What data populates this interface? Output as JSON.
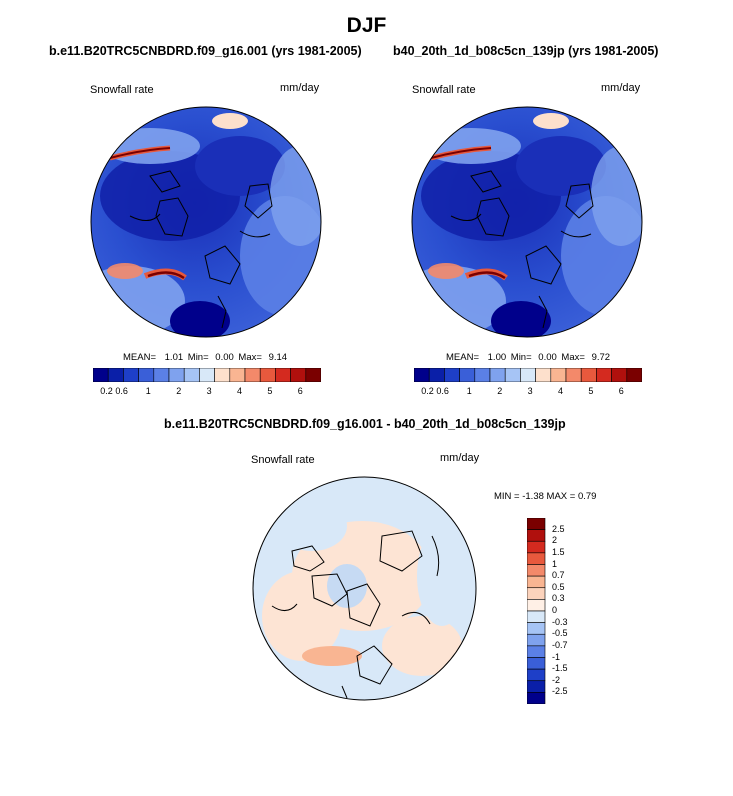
{
  "title": "DJF",
  "chart_data": [
    {
      "type": "heatmap",
      "projection": "polar stereographic (north pole)",
      "title": "b.e11.B20TRC5CNBDRD.f09_g16.001 (yrs 1981-2005)",
      "left_label": "Snowfall rate",
      "right_label": "mm/day",
      "stats": {
        "mean_label": "MEAN=",
        "mean": "1.01",
        "min_label": "Min=",
        "min": "0.00",
        "max_label": "Max=",
        "max": "9.14"
      },
      "colorbar": {
        "orientation": "horizontal",
        "levels": [
          0.2,
          0.4,
          0.6,
          0.8,
          1,
          1.5,
          2,
          2.5,
          3,
          3.5,
          4,
          4.5,
          5,
          5.5,
          6
        ],
        "tick_labels": [
          "0.2",
          "0.6",
          "1",
          "2",
          "3",
          "4",
          "5",
          "6"
        ]
      }
    },
    {
      "type": "heatmap",
      "projection": "polar stereographic (north pole)",
      "title": "b40_20th_1d_b08c5cn_139jp (yrs 1981-2005)",
      "left_label": "Snowfall rate",
      "right_label": "mm/day",
      "stats": {
        "mean_label": "MEAN=",
        "mean": "1.00",
        "min_label": "Min=",
        "min": "0.00",
        "max_label": "Max=",
        "max": "9.72"
      },
      "colorbar": {
        "orientation": "horizontal",
        "levels": [
          0.2,
          0.4,
          0.6,
          0.8,
          1,
          1.5,
          2,
          2.5,
          3,
          3.5,
          4,
          4.5,
          5,
          5.5,
          6
        ],
        "tick_labels": [
          "0.2",
          "0.6",
          "1",
          "2",
          "3",
          "4",
          "5",
          "6"
        ]
      }
    },
    {
      "type": "heatmap",
      "projection": "polar stereographic (north pole)",
      "title": "b.e11.B20TRC5CNBDRD.f09_g16.001 - b40_20th_1d_b08c5cn_139jp",
      "left_label": "Snowfall rate",
      "right_label": "mm/day",
      "stats_text": "MIN =  -1.38 MAX =   0.79",
      "colorbar": {
        "orientation": "vertical",
        "tick_labels_top_to_bottom": [
          "2.5",
          "2",
          "1.5",
          "1",
          "0.7",
          "0.5",
          "0.3",
          "0",
          "-0.3",
          "-0.5",
          "-0.7",
          "-1",
          "-1.5",
          "-2",
          "-2.5"
        ]
      }
    }
  ],
  "colors": {
    "abs_scale": [
      "#00008b",
      "#0a1fa8",
      "#1e3fc8",
      "#3a5fd8",
      "#5b80e6",
      "#7fa2ee",
      "#a6c4f5",
      "#d8e8f8",
      "#fde0cc",
      "#f9b592",
      "#f3896a",
      "#e8593d",
      "#d42a1f",
      "#b0100d",
      "#7a0000"
    ],
    "diff_scale": [
      "#7a0000",
      "#b0100d",
      "#d42a1f",
      "#e8593d",
      "#f3896a",
      "#f9b592",
      "#fcd3bc",
      "#fff0e6",
      "#d8e8f8",
      "#a6c4f5",
      "#7fa2ee",
      "#5b80e6",
      "#3a5fd8",
      "#1e3fc8",
      "#0a1fa8",
      "#00008b"
    ],
    "map_ocean": "#2a4fd0",
    "coast": "#000000"
  }
}
